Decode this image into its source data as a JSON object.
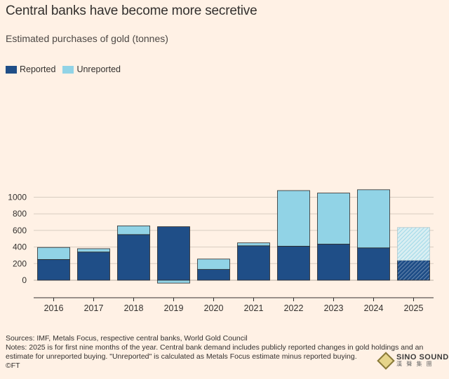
{
  "header": {
    "title": "Central banks have become more secretive",
    "subtitle": "Estimated purchases of gold (tonnes)"
  },
  "legend": [
    {
      "label": "Reported",
      "color": "#1f4e87"
    },
    {
      "label": "Unreported",
      "color": "#91d3e6"
    }
  ],
  "chart_data": {
    "type": "bar",
    "stacked": true,
    "categories": [
      "2016",
      "2017",
      "2018",
      "2019",
      "2020",
      "2021",
      "2022",
      "2023",
      "2024",
      "2025"
    ],
    "series": [
      {
        "name": "Reported",
        "color": "#1f4e87",
        "values": [
          250,
          340,
          550,
          645,
          130,
          415,
          410,
          435,
          390,
          240
        ]
      },
      {
        "name": "Unreported",
        "color": "#91d3e6",
        "values": [
          145,
          40,
          105,
          -35,
          125,
          35,
          670,
          615,
          700,
          395
        ]
      }
    ],
    "hatched_categories": [
      "2025"
    ],
    "yticks": [
      0,
      200,
      400,
      600,
      800,
      1000
    ],
    "ylim": [
      -60,
      1150
    ],
    "grid": true,
    "legend_position": "top-left"
  },
  "footer": {
    "sources": "Sources: IMF, Metals Focus, respective central banks, World Gold Council",
    "notes": "Notes: 2025 is for first nine months of the year. Central bank demand includes publicly reported changes in gold holdings and an estimate for unreported buying. \"Unreported\" is calculated as Metals Focus estimate minus reported buying.",
    "credit": "©FT"
  },
  "watermark": {
    "brand": "SINO SOUND",
    "sub": "漢 聲 集 團"
  }
}
